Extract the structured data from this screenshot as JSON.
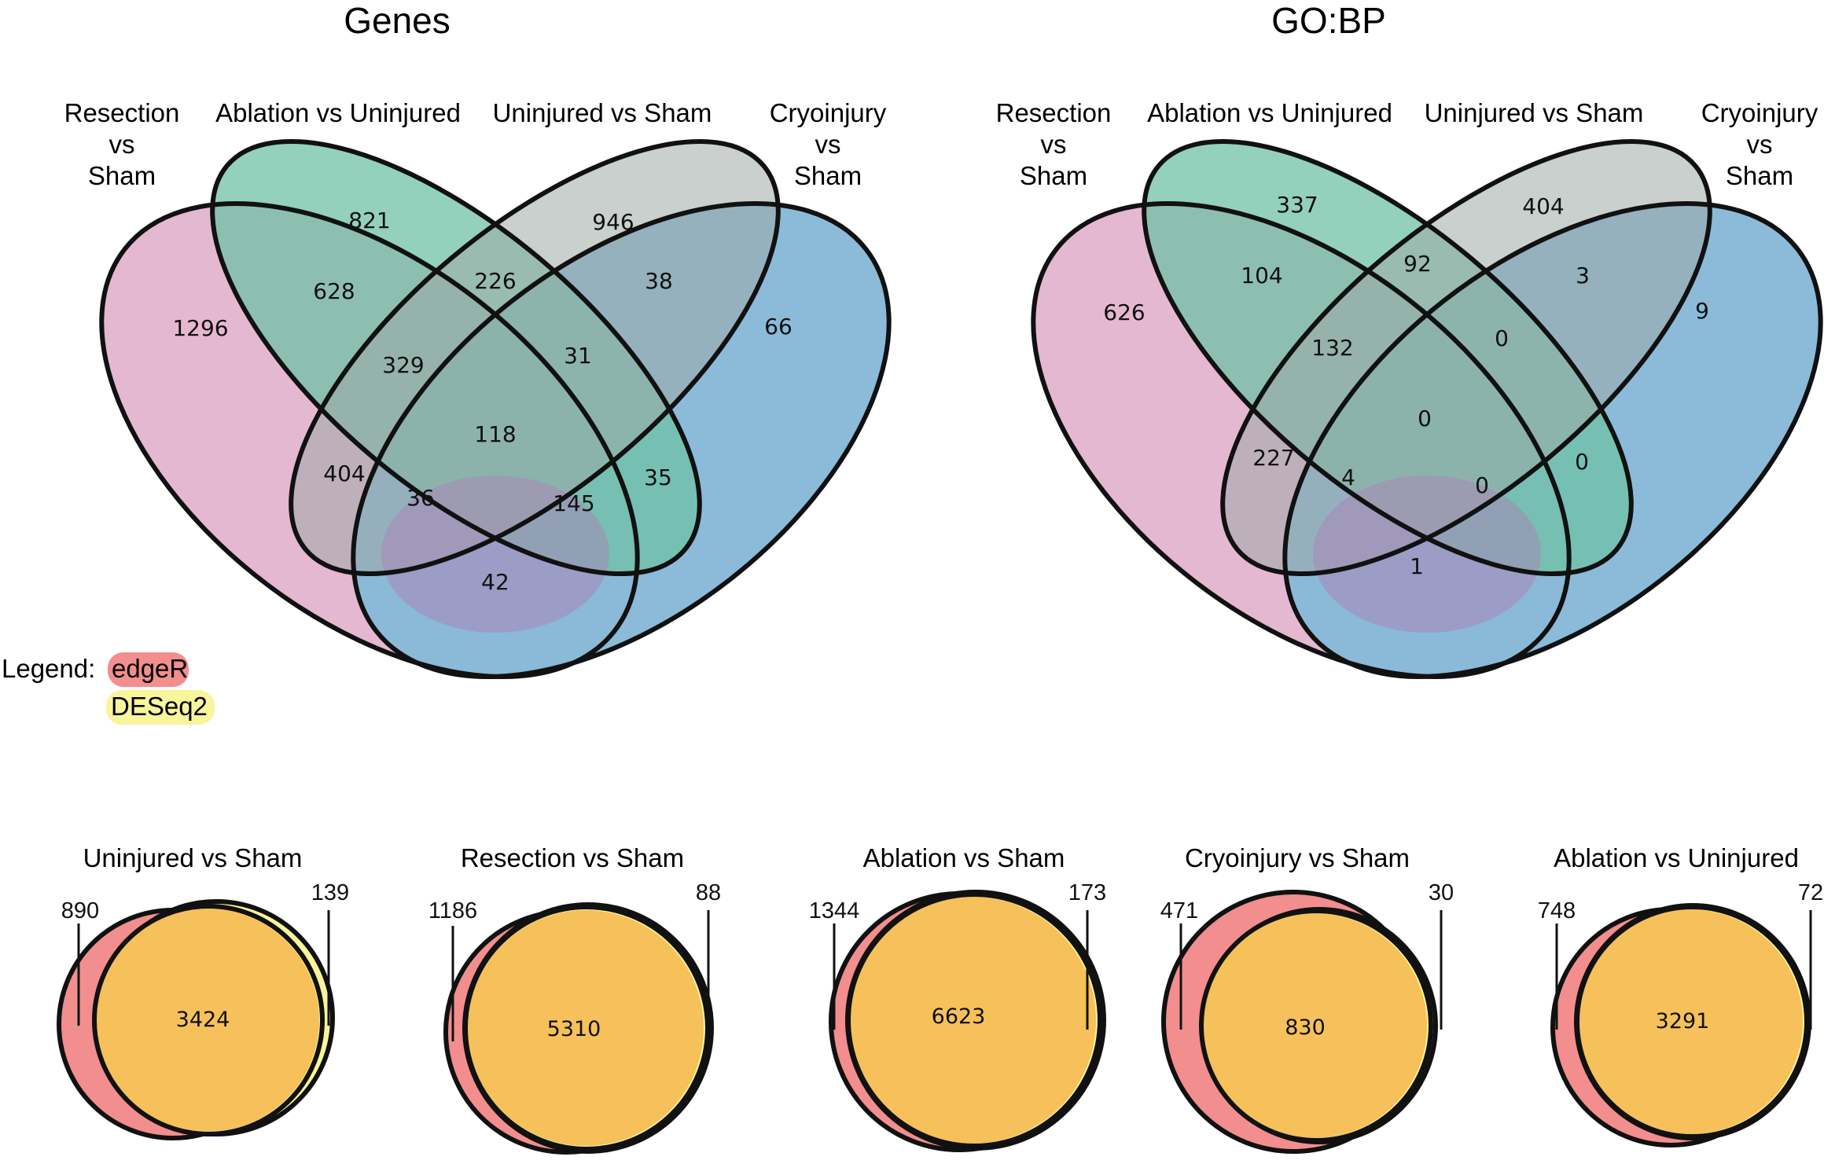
{
  "venn4": [
    {
      "title": "Genes",
      "set_labels": {
        "resection": [
          "Resection",
          "vs",
          "Sham"
        ],
        "ablation": [
          "Ablation vs Uninjured"
        ],
        "uninjured": [
          "Uninjured vs Sham"
        ],
        "cryoinjury": [
          "Cryoinjury",
          "vs",
          "Sham"
        ]
      },
      "regions": {
        "R": "1296",
        "A": "821",
        "U": "946",
        "C": "66",
        "RA": "628",
        "AU": "226",
        "UC": "38",
        "RAU": "329",
        "AUC": "31",
        "RAUC": "118",
        "RU": "404",
        "AC": "35",
        "RUC": "36",
        "RAC": "145",
        "RC": "42"
      }
    },
    {
      "title": "GO:BP",
      "set_labels": {
        "resection": [
          "Resection",
          "vs",
          "Sham"
        ],
        "ablation": [
          "Ablation vs Uninjured"
        ],
        "uninjured": [
          "Uninjured vs Sham"
        ],
        "cryoinjury": [
          "Cryoinjury",
          "vs",
          "Sham"
        ]
      },
      "regions": {
        "R": "626",
        "A": "337",
        "U": "404",
        "C": "9",
        "RA": "104",
        "AU": "92",
        "UC": "3",
        "RAU": "132",
        "AUC": "0",
        "RAUC": "0",
        "RU": "227",
        "AC": "0",
        "RUC": "4",
        "RAC": "0",
        "RC": "1"
      }
    }
  ],
  "colors": {
    "resection": "#e5b8d2",
    "ablation": "#8ecfb2",
    "uninjured": "#cbcbcb",
    "cryoinjury": "#87b9d8",
    "edgeR": "#f28e8e",
    "DESeq2": "#f8f59a",
    "overlap": "#f6c15a"
  },
  "legend": {
    "label": "Legend:",
    "items": [
      "edgeR",
      "DESeq2"
    ]
  },
  "venn2": [
    {
      "title": "Uninjured vs Sham",
      "edgeR_only": "890",
      "both": "3424",
      "deseq2_only": "139"
    },
    {
      "title": "Resection vs Sham",
      "edgeR_only": "1186",
      "both": "5310",
      "deseq2_only": "88"
    },
    {
      "title": "Ablation vs Sham",
      "edgeR_only": "1344",
      "both": "6623",
      "deseq2_only": "173"
    },
    {
      "title": "Cryoinjury vs Sham",
      "edgeR_only": "471",
      "both": "830",
      "deseq2_only": "30"
    },
    {
      "title": "Ablation vs Uninjured",
      "edgeR_only": "748",
      "both": "3291",
      "deseq2_only": "72"
    }
  ]
}
